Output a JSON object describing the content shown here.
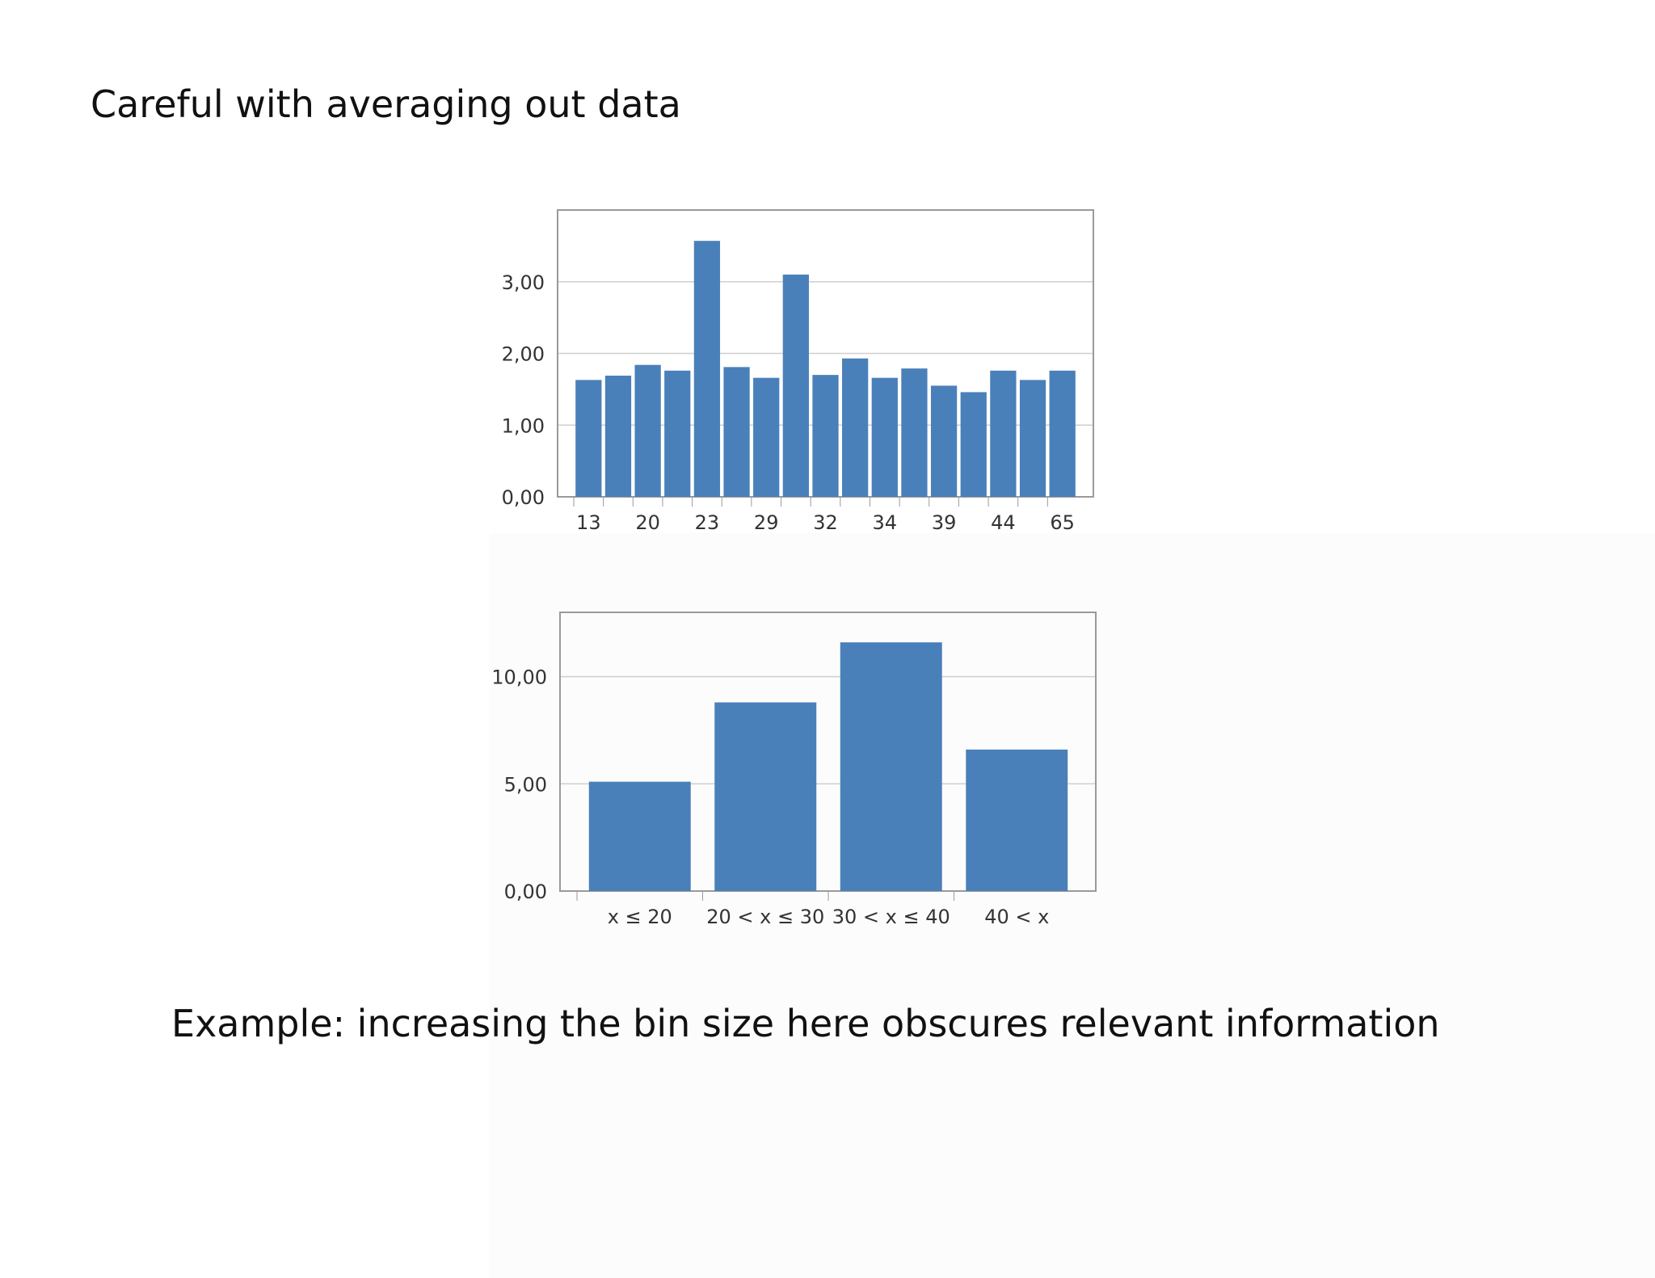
{
  "slide": {
    "title": "Careful with averaging out data",
    "caption": "Example: increasing the bin size here obscures relevant information"
  },
  "colors": {
    "bar": "#4a80b9",
    "grid": "#cfcfcf",
    "frame": "#9a9a9a",
    "tick_text": "#333333"
  },
  "chart_data": [
    {
      "type": "bar",
      "title": "",
      "xlabel": "",
      "ylabel": "",
      "ylim": [
        0,
        4.0
      ],
      "yticks": [
        0,
        1,
        2,
        3
      ],
      "ytick_labels": [
        "0,00",
        "1,00",
        "2,00",
        "3,00"
      ],
      "grid": true,
      "categories": [
        "13",
        "",
        "20",
        "",
        "23",
        "",
        "29",
        "",
        "32",
        "",
        "34",
        "",
        "39",
        "",
        "44",
        "",
        "65"
      ],
      "values": [
        1.63,
        1.69,
        1.84,
        1.76,
        3.57,
        1.81,
        1.66,
        3.1,
        1.7,
        1.93,
        1.66,
        1.79,
        1.55,
        1.46,
        1.76,
        1.63,
        1.76
      ]
    },
    {
      "type": "bar",
      "title": "",
      "xlabel": "",
      "ylabel": "",
      "ylim": [
        0,
        13.0
      ],
      "yticks": [
        0,
        5,
        10
      ],
      "ytick_labels": [
        "0,00",
        "5,00",
        "10,00"
      ],
      "grid": true,
      "categories": [
        "x ≤ 20",
        "20 < x ≤ 30",
        "30 < x ≤ 40",
        "40 < x"
      ],
      "values": [
        5.1,
        8.8,
        11.6,
        6.6
      ]
    }
  ]
}
